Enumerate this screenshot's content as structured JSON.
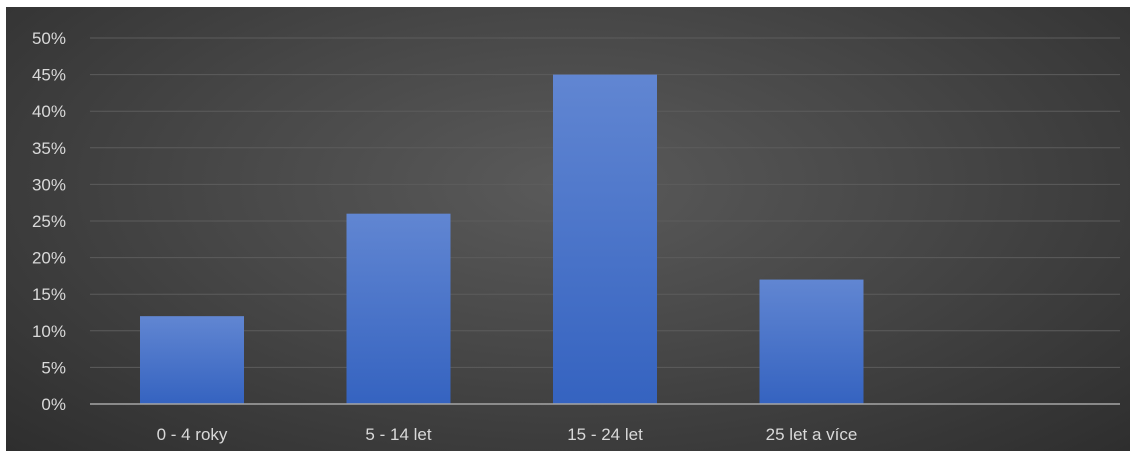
{
  "chart_data": {
    "type": "bar",
    "categories": [
      "0 - 4 roky",
      "5 - 14 let",
      "15 - 24 let",
      "25 let a více"
    ],
    "values": [
      0.12,
      0.26,
      0.45,
      0.17
    ],
    "y_ticks": [
      "0%",
      "5%",
      "10%",
      "15%",
      "20%",
      "25%",
      "30%",
      "35%",
      "40%",
      "45%",
      "50%"
    ],
    "ylim": [
      0,
      0.5
    ],
    "grid": true,
    "legend": "none",
    "colors": {
      "bar_top": "#6186d2",
      "bar_bottom": "#3563c0",
      "grid": "#5c5c5c",
      "axis": "#a6a6a6",
      "text": "#d9d9d9"
    }
  }
}
